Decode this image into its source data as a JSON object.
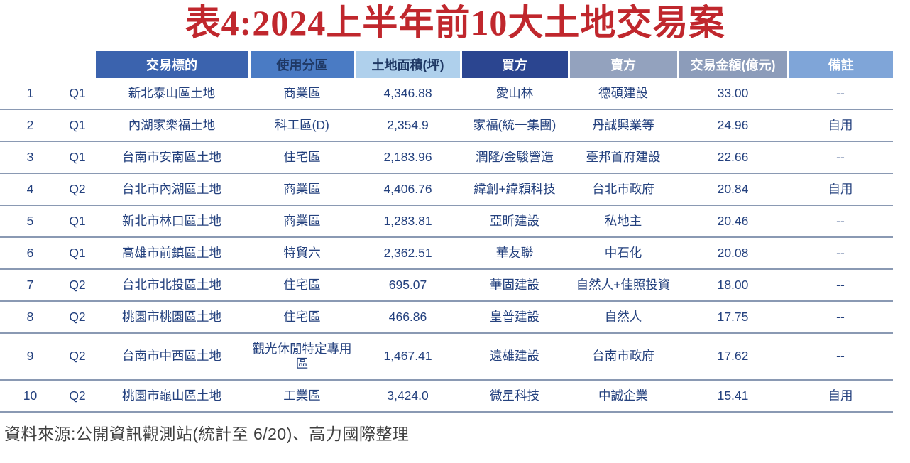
{
  "title": "表4:2024上半年前10大土地交易案",
  "colors": {
    "title_red": "#C0272D",
    "body_text": "#24417E",
    "row_line": "#8A99B3",
    "footer_text": "#3F3F3F"
  },
  "table": {
    "column_keys": [
      "rank",
      "quarter",
      "subject",
      "zoning",
      "area",
      "buyer",
      "seller",
      "amount",
      "note"
    ],
    "headers": [
      {
        "label": "",
        "bg": "transparent",
        "fg": "#24417E"
      },
      {
        "label": "",
        "bg": "transparent",
        "fg": "#24417E"
      },
      {
        "label": "交易標的",
        "bg": "#3B63AE",
        "fg": "#FFFFFF"
      },
      {
        "label": "使用分區",
        "bg": "#4A7BC4",
        "fg": "#1F3864"
      },
      {
        "label": "土地面積(坪)",
        "bg": "#AFD0EC",
        "fg": "#1F3864"
      },
      {
        "label": "買方",
        "bg": "#2B4590",
        "fg": "#FFFFFF"
      },
      {
        "label": "賣方",
        "bg": "#93A2BE",
        "fg": "#FFFFFF"
      },
      {
        "label": "交易金額(億元)",
        "bg": "#8C9CBA",
        "fg": "#FFFFFF"
      },
      {
        "label": "備註",
        "bg": "#7FA5D8",
        "fg": "#FFFFFF"
      }
    ],
    "rows": [
      [
        "1",
        "Q1",
        "新北泰山區土地",
        "商業區",
        "4,346.88",
        "愛山林",
        "德碩建設",
        "33.00",
        "--"
      ],
      [
        "2",
        "Q1",
        "內湖家樂福土地",
        "科工區(D)",
        "2,354.9",
        "家福(統一集團)",
        "丹誠興業等",
        "24.96",
        "自用"
      ],
      [
        "3",
        "Q1",
        "台南市安南區土地",
        "住宅區",
        "2,183.96",
        "潤隆/金駿營造",
        "臺邦首府建設",
        "22.66",
        "--"
      ],
      [
        "4",
        "Q2",
        "台北市內湖區土地",
        "商業區",
        "4,406.76",
        "緯創+緯穎科技",
        "台北市政府",
        "20.84",
        "自用"
      ],
      [
        "5",
        "Q1",
        "新北市林口區土地",
        "商業區",
        "1,283.81",
        "亞昕建設",
        "私地主",
        "20.46",
        "--"
      ],
      [
        "6",
        "Q1",
        "高雄市前鎮區土地",
        "特貿六",
        "2,362.51",
        "華友聯",
        "中石化",
        "20.08",
        "--"
      ],
      [
        "7",
        "Q2",
        "台北市北投區土地",
        "住宅區",
        "695.07",
        "華固建設",
        "自然人+佳照投資",
        "18.00",
        "--"
      ],
      [
        "8",
        "Q2",
        "桃園市桃園區土地",
        "住宅區",
        "466.86",
        "皇普建設",
        "自然人",
        "17.75",
        "--"
      ],
      [
        "9",
        "Q2",
        "台南市中西區土地",
        "觀光休閒特定專用區",
        "1,467.41",
        "遠雄建設",
        "台南市政府",
        "17.62",
        "--"
      ],
      [
        "10",
        "Q2",
        "桃園市龜山區土地",
        "工業區",
        "3,424.0",
        "微星科技",
        "中誠企業",
        "15.41",
        "自用"
      ]
    ]
  },
  "footer": {
    "source": "資料來源:公開資訊觀測站(統計至 6/20)、高力國際整理"
  }
}
